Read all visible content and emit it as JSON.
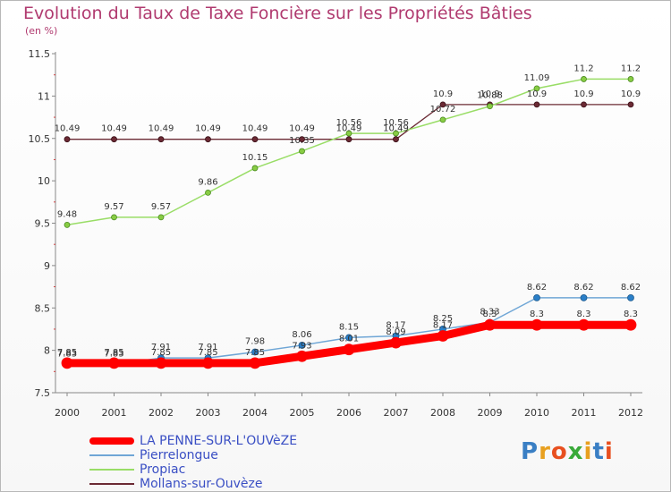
{
  "header": {
    "title": "Evolution du Taux de Taxe Foncière sur les Propriétés Bâties",
    "unit": "(en %)"
  },
  "brand": {
    "logo_text": "Proxiti"
  },
  "chart_data": {
    "type": "line",
    "title": "Evolution du Taux de Taxe Foncière sur les Propriétés Bâties",
    "ylabel": "(en %)",
    "xlabel": "",
    "ylim": [
      7.5,
      11.5
    ],
    "yticks": [
      "7.5",
      "8",
      "8.5",
      "9",
      "9.5",
      "10",
      "10.5",
      "11",
      "11.5"
    ],
    "x": [
      "2000",
      "2001",
      "2002",
      "2003",
      "2004",
      "2005",
      "2006",
      "2007",
      "2008",
      "2009",
      "2010",
      "2011",
      "2012"
    ],
    "series": [
      {
        "name": "LA PENNE-SUR-L'OUVèZE",
        "color": "#ff0000",
        "values": [
          7.85,
          7.85,
          7.85,
          7.85,
          7.85,
          7.93,
          8.01,
          8.09,
          8.17,
          8.3,
          8.3,
          8.3,
          8.3
        ],
        "labels": [
          "7.85",
          "7.85",
          "7.85",
          "7.85",
          "7.85",
          "7.93",
          "8.01",
          "8.09",
          "8.17",
          "8.3",
          "8.3",
          "8.3",
          "8.3"
        ]
      },
      {
        "name": "Pierrelongue",
        "color": "#6fa6d6",
        "values": [
          7.83,
          7.83,
          7.91,
          7.91,
          7.98,
          8.06,
          8.15,
          8.17,
          8.25,
          8.33,
          8.62,
          8.62,
          8.62
        ],
        "labels": [
          "7.83",
          "7.83",
          "7.91",
          "7.91",
          "7.98",
          "8.06",
          "8.15",
          "8.17",
          "8.25",
          "8.33",
          "8.62",
          "8.62",
          "8.62"
        ]
      },
      {
        "name": "Propiac",
        "color": "#99dd66",
        "values": [
          9.48,
          9.57,
          9.57,
          9.86,
          10.15,
          10.35,
          10.56,
          10.56,
          10.72,
          10.88,
          11.09,
          11.2,
          11.2
        ],
        "labels": [
          "9.48",
          "9.57",
          "9.57",
          "9.86",
          "10.15",
          "10.35",
          "10.56",
          "10.56",
          "10.72",
          "10.88",
          "11.09",
          "11.2",
          "11.2"
        ]
      },
      {
        "name": "Mollans-sur-Ouvèze",
        "color": "#6b2a34",
        "values": [
          10.49,
          10.49,
          10.49,
          10.49,
          10.49,
          10.49,
          10.49,
          10.49,
          10.9,
          10.9,
          10.9,
          10.9,
          10.9
        ],
        "labels": [
          "10.49",
          "10.49",
          "10.49",
          "10.49",
          "10.49",
          "10.49",
          "10.49",
          "10.49",
          "10.9",
          "10.9",
          "10.9",
          "10.9",
          "10.9"
        ]
      }
    ]
  }
}
